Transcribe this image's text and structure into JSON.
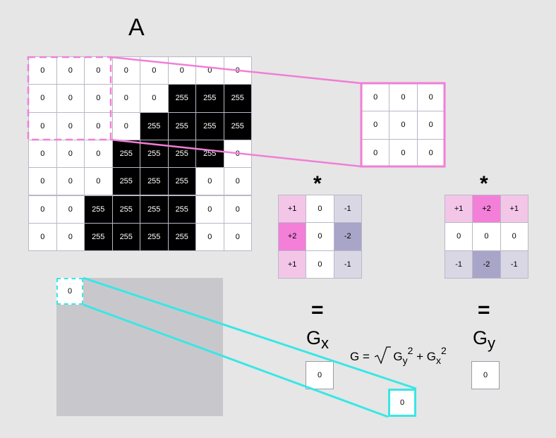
{
  "matrix_a": {
    "label": "A",
    "rows": [
      [
        "0",
        "0",
        "0",
        "0",
        "0",
        "0",
        "0",
        "0"
      ],
      [
        "0",
        "0",
        "0",
        "0",
        "0",
        "255",
        "255",
        "255"
      ],
      [
        "0",
        "0",
        "0",
        "0",
        "255",
        "255",
        "255",
        "255"
      ],
      [
        "0",
        "0",
        "0",
        "255",
        "255",
        "255",
        "255",
        "0"
      ],
      [
        "0",
        "0",
        "0",
        "255",
        "255",
        "255",
        "0",
        "0"
      ],
      [
        "0",
        "0",
        "255",
        "255",
        "255",
        "255",
        "0",
        "0"
      ],
      [
        "0",
        "0",
        "255",
        "255",
        "255",
        "255",
        "0",
        "0"
      ]
    ]
  },
  "window": {
    "rows": [
      [
        "0",
        "0",
        "0"
      ],
      [
        "0",
        "0",
        "0"
      ],
      [
        "0",
        "0",
        "0"
      ]
    ]
  },
  "kernel_x": {
    "operator": "*",
    "rows": [
      [
        "+1",
        "0",
        "-1"
      ],
      [
        "+2",
        "0",
        "-2"
      ],
      [
        "+1",
        "0",
        "-1"
      ]
    ],
    "colors": [
      [
        "#f3c6e8",
        "#ffffff",
        "#d9d7e4"
      ],
      [
        "#f37fd8",
        "#ffffff",
        "#a9a5c9"
      ],
      [
        "#f3c6e8",
        "#ffffff",
        "#d9d7e4"
      ]
    ]
  },
  "kernel_y": {
    "operator": "*",
    "rows": [
      [
        "+1",
        "+2",
        "+1"
      ],
      [
        "0",
        "0",
        "0"
      ],
      [
        "-1",
        "-2",
        "-1"
      ]
    ],
    "colors": [
      [
        "#f3c6e8",
        "#f37fd8",
        "#f3c6e8"
      ],
      [
        "#ffffff",
        "#ffffff",
        "#ffffff"
      ],
      [
        "#d9d7e4",
        "#a9a5c9",
        "#d9d7e4"
      ]
    ]
  },
  "gx": {
    "equals": "=",
    "label_main": "G",
    "label_sub": "x",
    "value": "0"
  },
  "gy": {
    "equals": "=",
    "label_main": "G",
    "label_sub": "y",
    "value": "0"
  },
  "formula": {
    "lhs": "G =",
    "term1": "G",
    "term1_sub": "y",
    "term1_sup": "2",
    "plus": "+",
    "term2": "G",
    "term2_sub": "x",
    "term2_sup": "2"
  },
  "output": {
    "corner_value": "0",
    "result_value": "0"
  },
  "colors": {
    "window_highlight": "#f07fd6",
    "output_highlight": "#3ae6e6",
    "output_area": "#c8c8cc",
    "black_cell": "#000000"
  }
}
